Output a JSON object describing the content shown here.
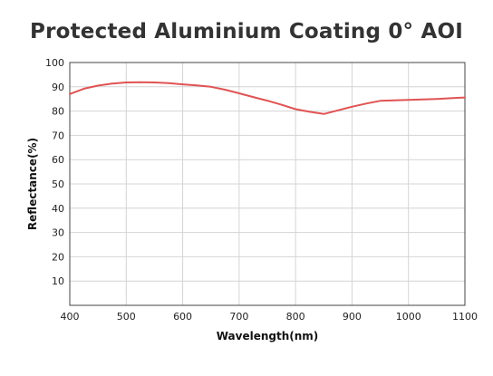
{
  "chart_data": {
    "type": "line",
    "title": "Protected Aluminium Coating 0° AOI",
    "xlabel": "Wavelength(nm)",
    "ylabel": "Reflectance(%)",
    "xlim": [
      400,
      1100
    ],
    "ylim": [
      0,
      100
    ],
    "xticks": [
      400,
      500,
      600,
      700,
      800,
      900,
      1000,
      1100
    ],
    "yticks": [
      10,
      20,
      30,
      40,
      50,
      60,
      70,
      80,
      90,
      100
    ],
    "grid": true,
    "line_color": "#e05353",
    "series": [
      {
        "x": [
          400,
          425,
          450,
          475,
          500,
          525,
          550,
          575,
          600,
          625,
          650,
          675,
          700,
          725,
          750,
          775,
          800,
          825,
          850,
          875,
          900,
          925,
          950,
          975,
          1000,
          1025,
          1050,
          1075,
          1100
        ],
        "y": [
          87.0,
          89.2,
          90.5,
          91.3,
          91.8,
          91.9,
          91.8,
          91.5,
          91.0,
          90.6,
          90.0,
          88.8,
          87.3,
          85.8,
          84.3,
          82.6,
          80.8,
          79.7,
          78.8,
          80.3,
          81.8,
          83.1,
          84.2,
          84.4,
          84.6,
          84.8,
          85.0,
          85.3,
          85.6
        ]
      }
    ]
  }
}
